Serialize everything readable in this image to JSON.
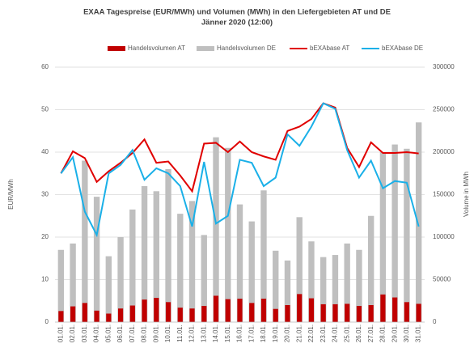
{
  "chart_data": {
    "type": "bar",
    "title_lines": [
      "EXAA Tagespreise (EUR/MWh) und Volumen (MWh) in den Liefergebieten AT und DE",
      "Jänner 2020 (12:00)"
    ],
    "ylabel": "EUR/MWh",
    "y2label": "Volume in MWh",
    "categories": [
      "01.01.",
      "02.01.",
      "03.01.",
      "04.01.",
      "05.01.",
      "06.01.",
      "07.01.",
      "08.01.",
      "09.01.",
      "10.01.",
      "11.01.",
      "12.01.",
      "13.01.",
      "14.01.",
      "15.01.",
      "16.01.",
      "17.01.",
      "18.01.",
      "19.01.",
      "20.01.",
      "21.01.",
      "22.01.",
      "23.01.",
      "24.01.",
      "25.01.",
      "26.01.",
      "27.01.",
      "28.01.",
      "29.01.",
      "30.01.",
      "31.01."
    ],
    "ylim": [
      0,
      60
    ],
    "yticks": [
      0,
      10,
      20,
      30,
      40,
      50,
      60
    ],
    "y2lim": [
      0,
      300000
    ],
    "y2ticks": [
      0,
      50000,
      100000,
      150000,
      200000,
      250000,
      300000
    ],
    "grid": true,
    "series": [
      {
        "name": "Handelsvolumen AT",
        "type": "bar",
        "axis": "y2",
        "color": "#c00000",
        "values": [
          13000,
          18500,
          22500,
          13500,
          10000,
          16000,
          19500,
          26500,
          28500,
          23500,
          17000,
          16000,
          19000,
          31000,
          27000,
          27500,
          22500,
          27500,
          15500,
          20000,
          33000,
          28000,
          21000,
          21000,
          21500,
          19000,
          20000,
          32500,
          29000,
          23500,
          21500
        ]
      },
      {
        "name": "Handelsvolumen DE",
        "type": "bar",
        "axis": "y2",
        "color": "#bfbfbf",
        "values": [
          85000,
          92500,
          190000,
          147500,
          77500,
          100000,
          132500,
          160000,
          154000,
          180000,
          127500,
          142500,
          102500,
          217500,
          205000,
          138500,
          118500,
          155000,
          84000,
          72500,
          123500,
          95000,
          76500,
          79000,
          92500,
          85000,
          125000,
          200000,
          209000,
          204000,
          235000
        ]
      },
      {
        "name": "bEXAbase AT",
        "type": "line",
        "color": "#e00000",
        "values": [
          35,
          40.2,
          38.6,
          33,
          35.5,
          37.5,
          39.8,
          43,
          37.5,
          37.8,
          34.5,
          30.8,
          42,
          42.2,
          40,
          42.5,
          40,
          39,
          38.2,
          45,
          46,
          47.8,
          51.5,
          50.5,
          41,
          36.5,
          42.3,
          39.8,
          39.8,
          40,
          39.7
        ]
      },
      {
        "name": "bEXAbase DE",
        "type": "line",
        "color": "#1ab0e8",
        "values": [
          35,
          38.8,
          26,
          20.5,
          35,
          37,
          40.5,
          33.5,
          36.2,
          35,
          32,
          22.5,
          37.7,
          23.2,
          25,
          38.2,
          37.5,
          32,
          34,
          44.2,
          41.5,
          46,
          51.5,
          50.2,
          40.5,
          34,
          38,
          31.5,
          33.2,
          32.8,
          22.5
        ]
      }
    ]
  }
}
